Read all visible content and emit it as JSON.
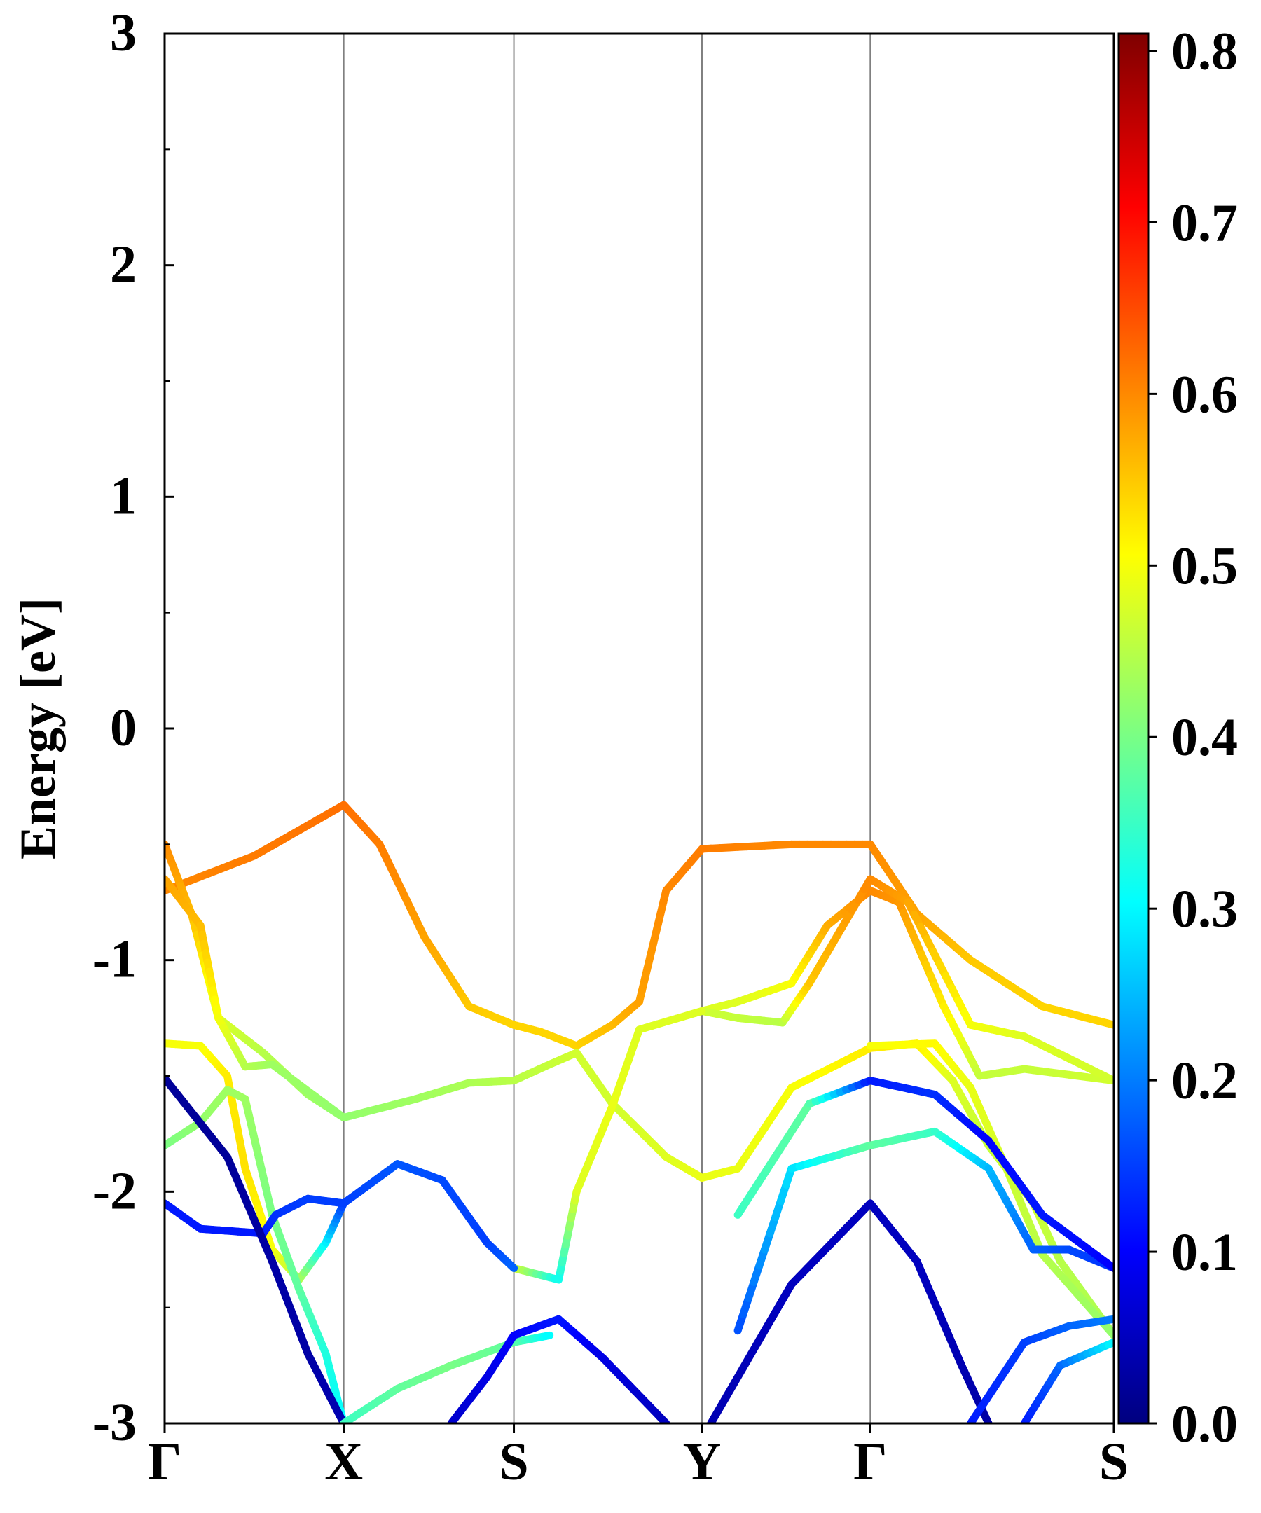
{
  "chart_data": {
    "type": "line",
    "title": "",
    "xlabel": "",
    "ylabel": "Energy [eV]",
    "ylim": [
      -3,
      3
    ],
    "xlim": [
      0,
      5.3
    ],
    "y_ticks": [
      {
        "value": -3,
        "label": "-3"
      },
      {
        "value": -2,
        "label": "-2"
      },
      {
        "value": -1,
        "label": "-1"
      },
      {
        "value": 0,
        "label": "0"
      },
      {
        "value": 1,
        "label": "1"
      },
      {
        "value": 2,
        "label": "2"
      },
      {
        "value": 3,
        "label": "3"
      }
    ],
    "y_minor_ticks": [
      -2.5,
      -1.5,
      -0.5,
      0.5,
      1.5,
      2.5
    ],
    "k_points": [
      {
        "label": "Γ",
        "x": 0
      },
      {
        "label": "X",
        "x": 1.0
      },
      {
        "label": "S",
        "x": 1.95
      },
      {
        "label": "Y",
        "x": 3.0
      },
      {
        "label": "Γ",
        "x": 3.94
      },
      {
        "label": "S",
        "x": 5.3
      }
    ],
    "grid": "vertical lines at high-symmetry points",
    "colorbar": {
      "colormap": "jet",
      "range": [
        0.0,
        0.81
      ],
      "ticks": [
        {
          "value": 0.0,
          "label": "0.0"
        },
        {
          "value": 0.1,
          "label": "0.1"
        },
        {
          "value": 0.2,
          "label": "0.2"
        },
        {
          "value": 0.3,
          "label": "0.3"
        },
        {
          "value": 0.4,
          "label": "0.4"
        },
        {
          "value": 0.5,
          "label": "0.5"
        },
        {
          "value": 0.6,
          "label": "0.6"
        },
        {
          "value": 0.7,
          "label": "0.7"
        },
        {
          "value": 0.8,
          "label": "0.8"
        }
      ]
    },
    "series": [
      {
        "points": [
          [
            0,
            -0.7
          ],
          [
            0.5,
            -0.55
          ],
          [
            1.0,
            -0.33
          ],
          [
            1.2,
            -0.5
          ],
          [
            1.45,
            -0.9
          ],
          [
            1.7,
            -1.2
          ],
          [
            1.95,
            -1.28
          ],
          [
            2.1,
            -1.31
          ],
          [
            2.3,
            -1.37
          ],
          [
            2.5,
            -1.28
          ],
          [
            2.65,
            -1.18
          ],
          [
            2.8,
            -0.7
          ],
          [
            3.0,
            -0.52
          ],
          [
            3.5,
            -0.5
          ],
          [
            3.94,
            -0.5
          ],
          [
            4.2,
            -0.8
          ],
          [
            4.5,
            -1.0
          ],
          [
            4.9,
            -1.2
          ],
          [
            5.3,
            -1.28
          ]
        ],
        "weights": [
          0.6,
          0.61,
          0.62,
          0.61,
          0.58,
          0.55,
          0.54,
          0.54,
          0.54,
          0.56,
          0.58,
          0.6,
          0.61,
          0.6,
          0.6,
          0.58,
          0.55,
          0.54,
          0.54
        ]
      },
      {
        "points": [
          [
            0,
            -0.5
          ],
          [
            0.15,
            -0.8
          ],
          [
            0.3,
            -1.25
          ],
          [
            0.55,
            -1.4
          ],
          [
            0.8,
            -1.58
          ],
          [
            1.0,
            -1.68
          ],
          [
            1.4,
            -1.6
          ],
          [
            1.7,
            -1.53
          ],
          [
            1.95,
            -1.52
          ],
          [
            2.15,
            -1.45
          ],
          [
            2.3,
            -1.4
          ],
          [
            2.5,
            -1.62
          ],
          [
            2.8,
            -1.85
          ],
          [
            3.0,
            -1.94
          ],
          [
            3.2,
            -1.9
          ],
          [
            3.5,
            -1.55
          ],
          [
            3.94,
            -1.38
          ],
          [
            4.2,
            -1.36
          ],
          [
            4.4,
            -1.52
          ],
          [
            4.6,
            -1.8
          ],
          [
            4.85,
            -2.05
          ],
          [
            5.0,
            -2.3
          ],
          [
            5.3,
            -2.62
          ]
        ],
        "weights": [
          0.6,
          0.56,
          0.48,
          0.45,
          0.43,
          0.42,
          0.43,
          0.44,
          0.45,
          0.46,
          0.47,
          0.47,
          0.48,
          0.49,
          0.49,
          0.5,
          0.52,
          0.52,
          0.48,
          0.46,
          0.47,
          0.45,
          0.44
        ]
      },
      {
        "points": [
          [
            0,
            -0.65
          ],
          [
            0.2,
            -0.85
          ],
          [
            0.3,
            -1.25
          ],
          [
            0.45,
            -1.46
          ],
          [
            0.6,
            -1.45
          ],
          [
            1.0,
            -1.68
          ]
        ],
        "weights": [
          0.58,
          0.56,
          0.5,
          0.45,
          0.43,
          0.42
        ]
      },
      {
        "points": [
          [
            3.0,
            -1.22
          ],
          [
            3.2,
            -1.18
          ],
          [
            3.5,
            -1.1
          ],
          [
            3.7,
            -0.85
          ],
          [
            3.94,
            -0.7
          ],
          [
            4.1,
            -0.75
          ],
          [
            4.35,
            -1.2
          ],
          [
            4.55,
            -1.5
          ],
          [
            4.8,
            -1.47
          ],
          [
            5.3,
            -1.52
          ]
        ],
        "weights": [
          0.48,
          0.48,
          0.5,
          0.57,
          0.6,
          0.59,
          0.52,
          0.46,
          0.46,
          0.47
        ]
      },
      {
        "points": [
          [
            3.0,
            -1.22
          ],
          [
            3.2,
            -1.25
          ],
          [
            3.45,
            -1.27
          ],
          [
            3.6,
            -1.1
          ],
          [
            3.94,
            -0.65
          ],
          [
            4.15,
            -0.75
          ],
          [
            4.5,
            -1.28
          ],
          [
            4.8,
            -1.33
          ],
          [
            5.3,
            -1.52
          ]
        ],
        "weights": [
          0.47,
          0.46,
          0.45,
          0.55,
          0.6,
          0.58,
          0.5,
          0.48,
          0.47
        ]
      },
      {
        "points": [
          [
            0,
            -1.36
          ],
          [
            0.2,
            -1.37
          ],
          [
            0.35,
            -1.5
          ],
          [
            0.45,
            -1.9
          ],
          [
            0.6,
            -2.25
          ],
          [
            0.75,
            -2.38
          ],
          [
            0.9,
            -2.22
          ],
          [
            1.0,
            -2.05
          ]
        ],
        "weights": [
          0.5,
          0.5,
          0.52,
          0.53,
          0.5,
          0.45,
          0.3,
          0.15
        ]
      },
      {
        "points": [
          [
            0,
            -1.8
          ],
          [
            0.2,
            -1.7
          ],
          [
            0.35,
            -1.56
          ],
          [
            0.45,
            -1.6
          ],
          [
            0.6,
            -2.1
          ],
          [
            0.75,
            -2.42
          ],
          [
            0.9,
            -2.7
          ],
          [
            1.0,
            -3.0
          ]
        ],
        "weights": [
          0.4,
          0.42,
          0.43,
          0.43,
          0.4,
          0.38,
          0.33,
          0.3
        ]
      },
      {
        "points": [
          [
            1.95,
            -2.33
          ],
          [
            2.2,
            -2.38
          ],
          [
            2.3,
            -2.0
          ],
          [
            2.5,
            -1.63
          ],
          [
            2.65,
            -1.3
          ],
          [
            3.0,
            -1.22
          ]
        ],
        "weights": [
          0.48,
          0.31,
          0.48,
          0.49,
          0.48,
          0.48
        ]
      },
      {
        "points": [
          [
            3.94,
            -1.37
          ],
          [
            4.3,
            -1.36
          ],
          [
            4.5,
            -1.55
          ],
          [
            4.7,
            -1.9
          ],
          [
            4.9,
            -2.27
          ],
          [
            5.3,
            -2.62
          ]
        ],
        "weights": [
          0.5,
          0.51,
          0.49,
          0.47,
          0.45,
          0.42
        ]
      },
      {
        "points": [
          [
            0,
            -2.05
          ],
          [
            0.2,
            -2.16
          ],
          [
            0.55,
            -2.18
          ],
          [
            0.62,
            -2.1
          ],
          [
            0.8,
            -2.03
          ],
          [
            1.0,
            -2.05
          ],
          [
            1.3,
            -1.88
          ],
          [
            1.55,
            -1.95
          ],
          [
            1.8,
            -2.22
          ],
          [
            1.95,
            -2.33
          ]
        ],
        "weights": [
          0.12,
          0.12,
          0.12,
          0.14,
          0.15,
          0.15,
          0.17,
          0.16,
          0.15,
          0.18
        ]
      },
      {
        "points": [
          [
            0,
            -1.51
          ],
          [
            0.35,
            -1.85
          ],
          [
            0.6,
            -2.3
          ],
          [
            0.8,
            -2.7
          ],
          [
            1.0,
            -3.0
          ]
        ],
        "weights": [
          0.02,
          0.02,
          0.03,
          0.03,
          0.04
        ]
      },
      {
        "points": [
          [
            3.2,
            -2.6
          ],
          [
            3.5,
            -1.9
          ],
          [
            3.94,
            -1.8
          ],
          [
            4.3,
            -1.74
          ],
          [
            4.6,
            -1.9
          ],
          [
            4.85,
            -2.25
          ],
          [
            5.05,
            -2.25
          ],
          [
            5.3,
            -2.33
          ]
        ],
        "weights": [
          0.16,
          0.28,
          0.38,
          0.35,
          0.25,
          0.18,
          0.16,
          0.14
        ]
      },
      {
        "points": [
          [
            3.2,
            -2.1
          ],
          [
            3.6,
            -1.62
          ],
          [
            3.94,
            -1.52
          ],
          [
            4.3,
            -1.58
          ],
          [
            4.6,
            -1.78
          ],
          [
            4.9,
            -2.1
          ],
          [
            5.3,
            -2.33
          ]
        ],
        "weights": [
          0.35,
          0.38,
          0.12,
          0.14,
          0.1,
          0.12,
          0.1
        ]
      },
      {
        "points": [
          [
            1.0,
            -3.0
          ],
          [
            1.3,
            -2.85
          ],
          [
            1.6,
            -2.75
          ],
          [
            1.95,
            -2.65
          ],
          [
            2.15,
            -2.62
          ]
        ],
        "weights": [
          0.35,
          0.38,
          0.4,
          0.38,
          0.3
        ]
      },
      {
        "points": [
          [
            1.6,
            -3.0
          ],
          [
            1.8,
            -2.8
          ],
          [
            1.95,
            -2.62
          ],
          [
            2.2,
            -2.55
          ],
          [
            2.45,
            -2.72
          ],
          [
            2.8,
            -3.0
          ]
        ],
        "weights": [
          0.06,
          0.08,
          0.1,
          0.12,
          0.08,
          0.05
        ]
      },
      {
        "points": [
          [
            3.05,
            -3.0
          ],
          [
            3.5,
            -2.4
          ],
          [
            3.94,
            -2.05
          ],
          [
            4.2,
            -2.3
          ],
          [
            4.45,
            -2.75
          ],
          [
            4.6,
            -3.0
          ]
        ],
        "weights": [
          0.04,
          0.05,
          0.05,
          0.05,
          0.04,
          0.03
        ]
      },
      {
        "points": [
          [
            4.5,
            -3.0
          ],
          [
            4.8,
            -2.65
          ],
          [
            5.05,
            -2.58
          ],
          [
            5.3,
            -2.55
          ]
        ],
        "weights": [
          0.12,
          0.15,
          0.18,
          0.2
        ]
      },
      {
        "points": [
          [
            4.8,
            -3.0
          ],
          [
            5.0,
            -2.75
          ],
          [
            5.3,
            -2.65
          ]
        ],
        "weights": [
          0.12,
          0.18,
          0.3
        ]
      }
    ]
  }
}
